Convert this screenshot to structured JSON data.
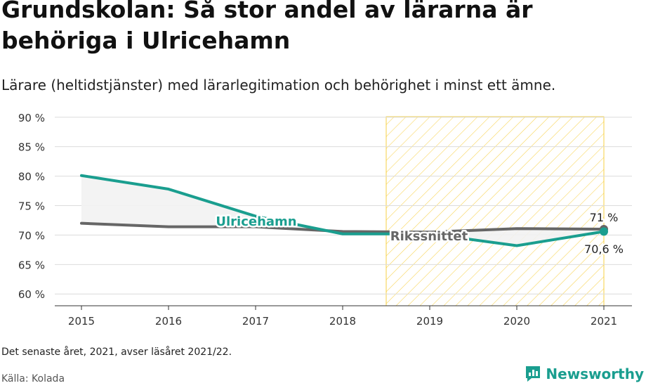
{
  "title": "Grundskolan: Så stor andel av lärarna är behöriga i Ulricehamn",
  "subtitle": "Lärare (heltidstjänster) med lärarlegitimation och behörighet i minst ett ämne.",
  "note": "Det senaste året, 2021, avser läsåret 2021/22.",
  "source": "Källa: Kolada",
  "brand": {
    "name": "Newsworthy",
    "icon": "newsworthy-logo-icon",
    "color": "#1a9e8f"
  },
  "colors": {
    "ulricehamn": "#1a9e8f",
    "riket": "#666666",
    "highlight": "#f5c518"
  },
  "chart_data": {
    "type": "line",
    "x": [
      "2015",
      "2016",
      "2017",
      "2018",
      "2019",
      "2020",
      "2021"
    ],
    "ylim": [
      58,
      92
    ],
    "yticks": [
      60,
      65,
      70,
      75,
      80,
      85,
      90
    ],
    "ytick_labels": [
      "60 %",
      "65 %",
      "70 %",
      "75 %",
      "80 %",
      "85 %",
      "90 %"
    ],
    "grid": true,
    "highlight_range": [
      "2018.5",
      "2021"
    ],
    "series": [
      {
        "name": "Ulricehamn",
        "color": "#1a9e8f",
        "values": [
          80.1,
          77.8,
          73.2,
          70.2,
          70.2,
          68.2,
          70.6
        ]
      },
      {
        "name": "Rikssnittet",
        "color": "#666666",
        "values": [
          72.0,
          71.4,
          71.4,
          70.6,
          70.5,
          71.1,
          71.0
        ]
      }
    ],
    "end_labels": {
      "ulricehamn": "70,6 %",
      "riket": "71 %"
    }
  }
}
